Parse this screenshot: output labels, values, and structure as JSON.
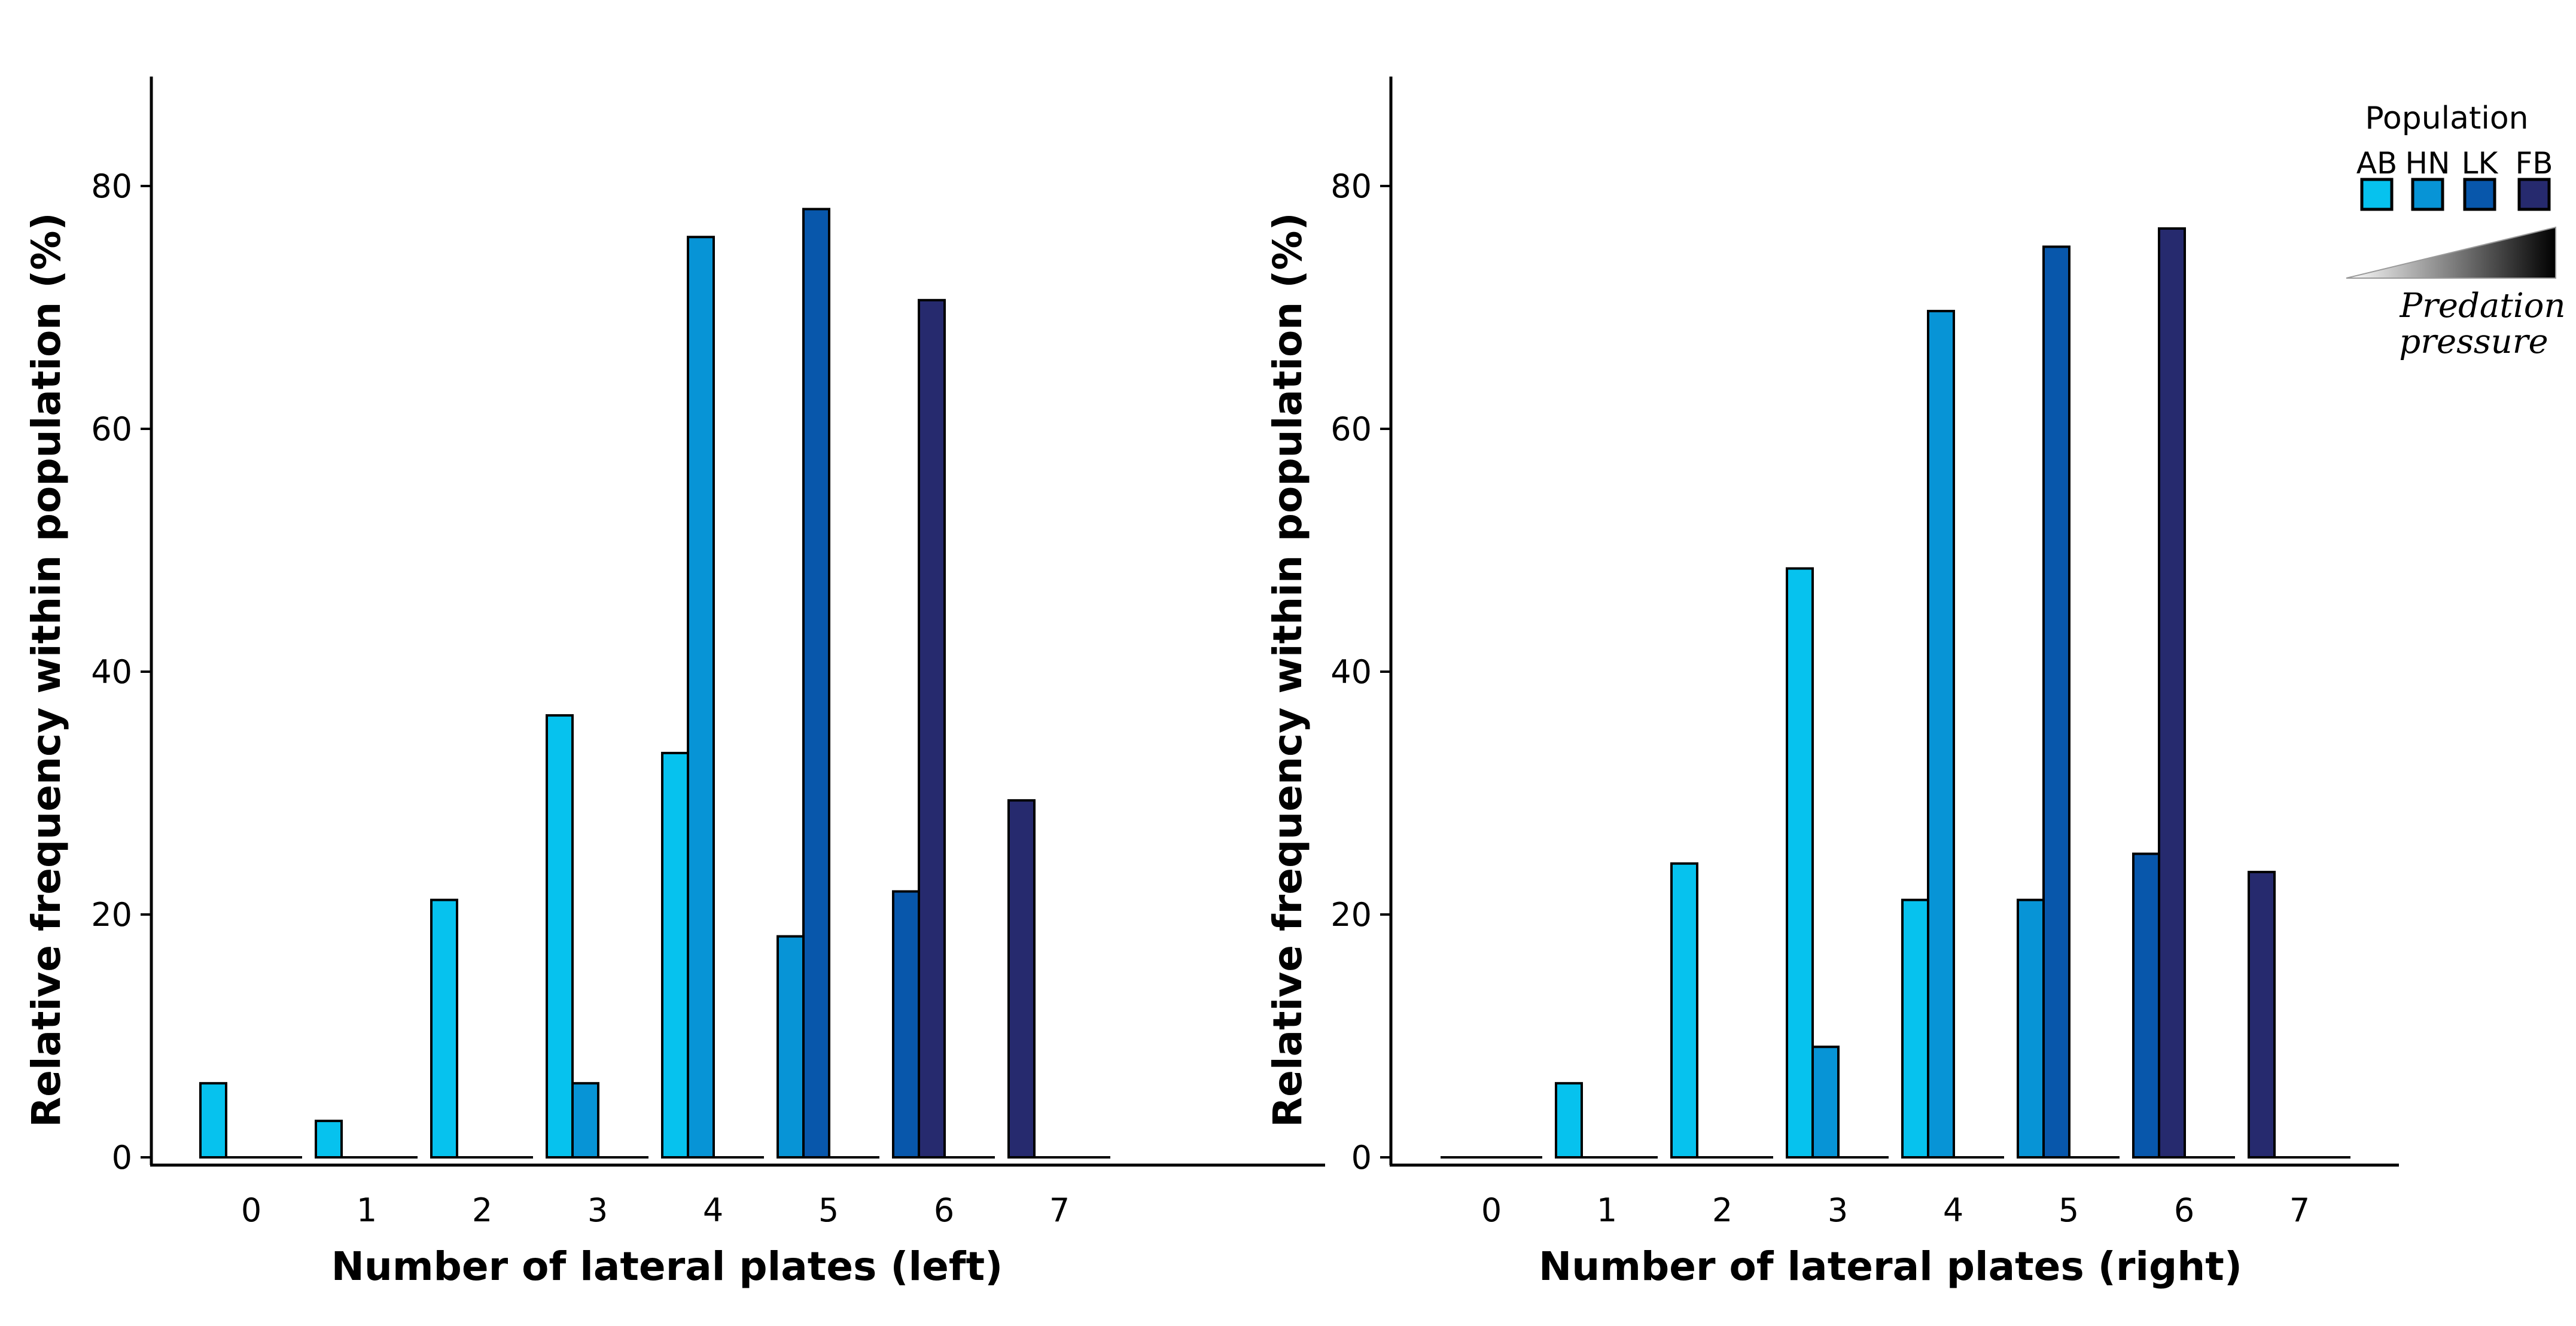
{
  "chart_data": [
    {
      "type": "bar",
      "title": "",
      "xlabel": "Number of lateral plates (left)",
      "ylabel": "Relative frequency within population (%)",
      "categories": [
        "0",
        "1",
        "2",
        "3",
        "4",
        "5",
        "6",
        "7"
      ],
      "yticks": [
        "0",
        "20",
        "40",
        "60",
        "80"
      ],
      "ylim": [
        0,
        90
      ],
      "series": [
        {
          "name": "AB",
          "color": "#06C2EE",
          "values": [
            6.1,
            3.0,
            21.2,
            36.4,
            33.3,
            0,
            0,
            0
          ]
        },
        {
          "name": "HN",
          "color": "#0794D6",
          "values": [
            0,
            0,
            0,
            6.1,
            75.8,
            18.2,
            0,
            0
          ]
        },
        {
          "name": "LK",
          "color": "#0857AB",
          "values": [
            0,
            0,
            0,
            0,
            0,
            78.1,
            21.9,
            0
          ]
        },
        {
          "name": "FB",
          "color": "#262A6E",
          "values": [
            0,
            0,
            0,
            0,
            0,
            0,
            70.6,
            29.4
          ]
        }
      ]
    },
    {
      "type": "bar",
      "title": "",
      "xlabel": "Number of lateral plates (right)",
      "ylabel": "Relative frequency within population (%)",
      "categories": [
        "0",
        "1",
        "2",
        "3",
        "4",
        "5",
        "6",
        "7"
      ],
      "yticks": [
        "0",
        "20",
        "40",
        "60",
        "80"
      ],
      "ylim": [
        0,
        90
      ],
      "series": [
        {
          "name": "AB",
          "color": "#06C2EE",
          "values": [
            0,
            6.1,
            24.2,
            48.5,
            21.2,
            0,
            0,
            0
          ]
        },
        {
          "name": "HN",
          "color": "#0794D6",
          "values": [
            0,
            0,
            0,
            9.1,
            69.7,
            21.2,
            0,
            0
          ]
        },
        {
          "name": "LK",
          "color": "#0857AB",
          "values": [
            0,
            0,
            0,
            0,
            0,
            75.0,
            25.0,
            0
          ]
        },
        {
          "name": "FB",
          "color": "#262A6E",
          "values": [
            0,
            0,
            0,
            0,
            0,
            0,
            76.5,
            23.5
          ]
        }
      ]
    }
  ],
  "legend": {
    "title": "Population",
    "items": [
      {
        "code": "AB",
        "color": "#06C2EE"
      },
      {
        "code": "HN",
        "color": "#0794D6"
      },
      {
        "code": "LK",
        "color": "#0857AB"
      },
      {
        "code": "FB",
        "color": "#262A6E"
      }
    ],
    "gradient_label_line1": "Predation",
    "gradient_label_line2": "pressure"
  }
}
